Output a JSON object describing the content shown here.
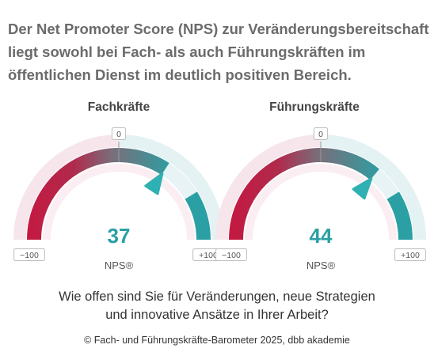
{
  "headline": "Der Net Promoter Score (NPS) zur Veränderungsbereitschaft liegt sowohl bei Fach- als auch Führungskräften im öffentlichen Dienst im deutlich positiven Bereich.",
  "question_line1": "Wie offen sind Sie für Veränderungen, neue Strategien",
  "question_line2": "und innovative Ansätze in Ihrer Arbeit?",
  "credit": "© Fach- und Führungskräfte-Barometer 2025, dbb akademie",
  "colors": {
    "negative": "#c8163f",
    "positive": "#2aa0a4",
    "value_text": "#2aa0a4",
    "track_light": "#f6e6ec"
  },
  "chart_data": [
    {
      "type": "gauge",
      "title": "Fachkräfte",
      "value": 37,
      "value_label": "37",
      "metric_label": "NPS®",
      "range": [
        -100,
        100
      ],
      "min_label": "−100",
      "mid_label": "0",
      "max_label": "+100"
    },
    {
      "type": "gauge",
      "title": "Führungskräfte",
      "value": 44,
      "value_label": "44",
      "metric_label": "NPS®",
      "range": [
        -100,
        100
      ],
      "min_label": "−100",
      "mid_label": "0",
      "max_label": "+100"
    }
  ]
}
